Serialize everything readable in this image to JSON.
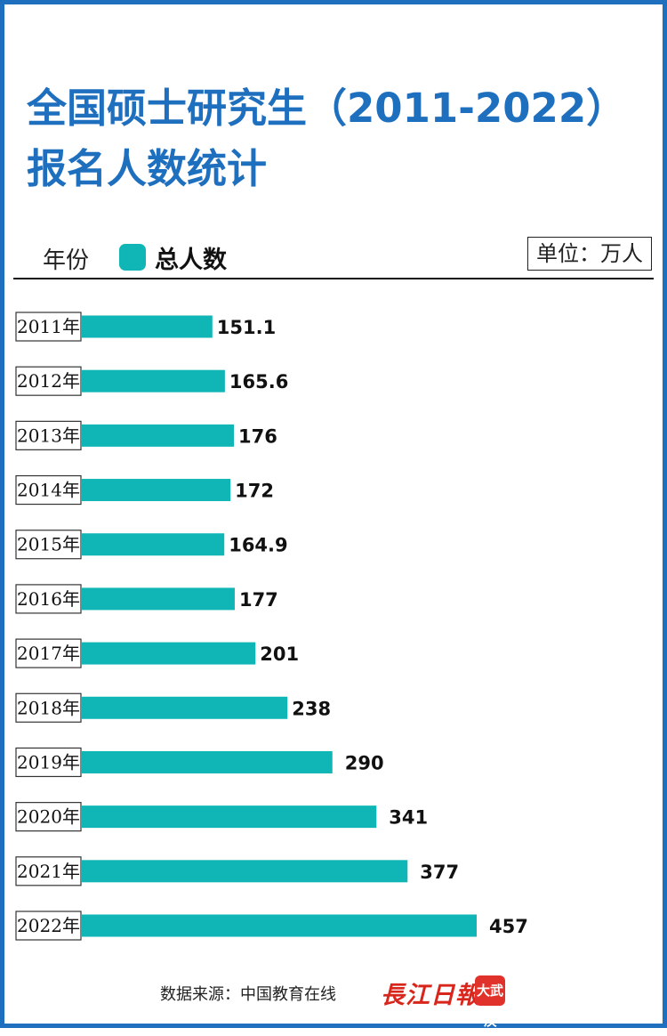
{
  "title": "全国硕士研究生（2011-2022）报名人数统计",
  "legend": {
    "category_label": "年份",
    "series_label": "总人数",
    "unit": "单位：万人"
  },
  "colors": {
    "frame": "#1f6fbf",
    "title": "#1f6fbf",
    "bar": "#10b6b5",
    "logo": "#d8261d"
  },
  "chart_data": {
    "type": "bar",
    "orientation": "horizontal",
    "categories": [
      "2011年",
      "2012年",
      "2013年",
      "2014年",
      "2015年",
      "2016年",
      "2017年",
      "2018年",
      "2019年",
      "2020年",
      "2021年",
      "2022年"
    ],
    "values": [
      151.1,
      165.6,
      176,
      172,
      164.9,
      177,
      201,
      238,
      290,
      341,
      377,
      457
    ],
    "value_labels": [
      "151.1",
      "165.6",
      "176",
      "172",
      "164.9",
      "177",
      "201",
      "238",
      "290",
      "341",
      "377",
      "457"
    ],
    "series": [
      {
        "name": "总人数",
        "values": [
          151.1,
          165.6,
          176,
          172,
          164.9,
          177,
          201,
          238,
          290,
          341,
          377,
          457
        ]
      }
    ],
    "title": "全国硕士研究生（2011-2022）报名人数统计",
    "xlabel": "",
    "ylabel": "年份",
    "unit": "万人",
    "grid": false,
    "legend_position": "top-left"
  },
  "footer": {
    "source": "数据来源：中国教育在线",
    "logo_text": "長江日報",
    "logo_badge": "大武汉"
  }
}
